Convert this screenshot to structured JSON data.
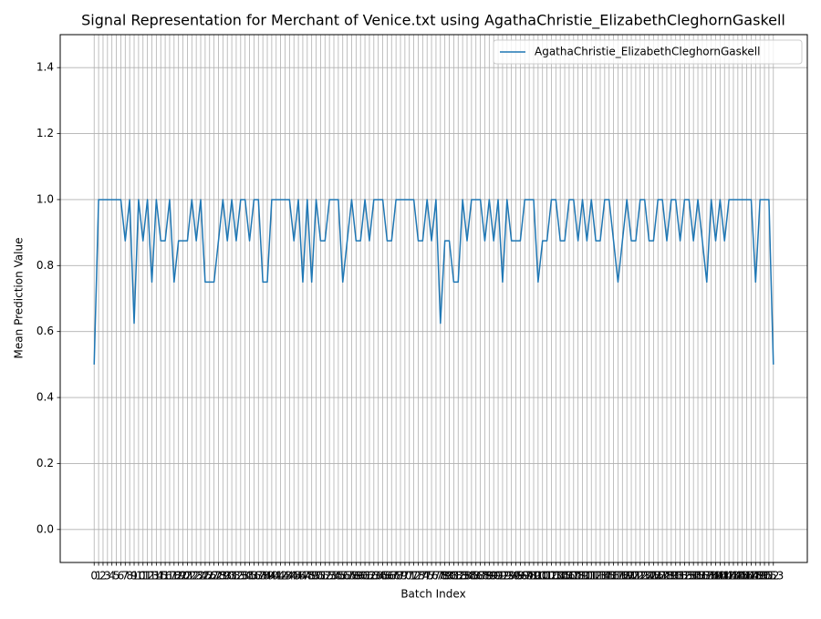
{
  "chart_data": {
    "type": "line",
    "title": "Signal Representation for Merchant of Venice.txt using AgathaChristie_ElizabethCleghornGaskell",
    "x_label": "Batch Index",
    "y_label": "Mean Prediction Value",
    "x": [
      0,
      1,
      2,
      3,
      4,
      5,
      6,
      7,
      8,
      9,
      10,
      11,
      12,
      13,
      14,
      15,
      16,
      17,
      18,
      19,
      20,
      21,
      22,
      23,
      24,
      25,
      26,
      27,
      28,
      29,
      30,
      31,
      32,
      33,
      34,
      35,
      36,
      37,
      38,
      39,
      40,
      41,
      42,
      43,
      44,
      45,
      46,
      47,
      48,
      49,
      50,
      51,
      52,
      53,
      54,
      55,
      56,
      57,
      58,
      59,
      60,
      61,
      62,
      63,
      64,
      65,
      66,
      67,
      68,
      69,
      70,
      71,
      72,
      73,
      74,
      75,
      76,
      77,
      78,
      79,
      80,
      81,
      82,
      83,
      84,
      85,
      86,
      87,
      88,
      89,
      90,
      91,
      92,
      93,
      94,
      95,
      96,
      97,
      98,
      99,
      100,
      101,
      102,
      103,
      104,
      105,
      106,
      107,
      108,
      109,
      110,
      111,
      112,
      113,
      114,
      115,
      116,
      117,
      118,
      119,
      120,
      121,
      122,
      123,
      124,
      125,
      126,
      127,
      128,
      129,
      130,
      131,
      132,
      133,
      134,
      135,
      136,
      137,
      138,
      139,
      140,
      141,
      142,
      143,
      144,
      145,
      146,
      147,
      148,
      149,
      150,
      151,
      152,
      153
    ],
    "series": [
      {
        "name": "AgathaChristie_ElizabethCleghornGaskell",
        "color": "#1f77b4",
        "values": [
          0.5,
          1,
          1,
          1,
          1,
          1,
          1,
          0.875,
          1,
          0.625,
          1,
          0.875,
          1,
          0.75,
          1,
          0.875,
          0.875,
          1,
          0.75,
          0.875,
          0.875,
          0.875,
          1,
          0.875,
          1,
          0.75,
          0.75,
          0.75,
          0.875,
          1,
          0.875,
          1,
          0.875,
          1,
          1,
          0.875,
          1,
          1,
          0.75,
          0.75,
          1,
          1,
          1,
          1,
          1,
          0.875,
          1,
          0.75,
          1,
          0.75,
          1,
          0.875,
          0.875,
          1,
          1,
          1,
          0.75,
          0.875,
          1,
          0.875,
          0.875,
          1,
          0.875,
          1,
          1,
          1,
          0.875,
          0.875,
          1,
          1,
          1,
          1,
          1,
          0.875,
          0.875,
          1,
          0.875,
          1,
          0.625,
          0.875,
          0.875,
          0.75,
          0.75,
          1,
          0.875,
          1,
          1,
          1,
          0.875,
          1,
          0.875,
          1,
          0.75,
          1,
          0.875,
          0.875,
          0.875,
          1,
          1,
          1,
          0.75,
          0.875,
          0.875,
          1,
          1,
          0.875,
          0.875,
          1,
          1,
          0.875,
          1,
          0.875,
          1,
          0.875,
          0.875,
          1,
          1,
          0.875,
          0.75,
          0.875,
          1,
          0.875,
          0.875,
          1,
          1,
          0.875,
          0.875,
          1,
          1,
          0.875,
          1,
          1,
          0.875,
          1,
          1,
          0.875,
          1,
          0.875,
          0.75,
          1,
          0.875,
          1,
          0.875,
          1,
          1,
          1,
          1,
          1,
          1,
          0.75,
          1,
          1,
          1,
          0.5
        ]
      }
    ],
    "xlim": [
      -7.65,
      160.65
    ],
    "xticks": [
      0,
      1,
      2,
      3,
      4,
      5,
      6,
      7,
      8,
      9,
      10,
      11,
      12,
      13,
      14,
      15,
      16,
      17,
      18,
      19,
      20,
      21,
      22,
      23,
      24,
      25,
      26,
      27,
      28,
      29,
      30,
      31,
      32,
      33,
      34,
      35,
      36,
      37,
      38,
      39,
      40,
      41,
      42,
      43,
      44,
      45,
      46,
      47,
      48,
      49,
      50,
      51,
      52,
      53,
      54,
      55,
      56,
      57,
      58,
      59,
      60,
      61,
      62,
      63,
      64,
      65,
      66,
      67,
      68,
      69,
      70,
      71,
      72,
      73,
      74,
      75,
      76,
      77,
      78,
      79,
      80,
      81,
      82,
      83,
      84,
      85,
      86,
      87,
      88,
      89,
      90,
      91,
      92,
      93,
      94,
      95,
      96,
      97,
      98,
      99,
      100,
      101,
      102,
      103,
      104,
      105,
      106,
      107,
      108,
      109,
      110,
      111,
      112,
      113,
      114,
      115,
      116,
      117,
      118,
      119,
      120,
      121,
      122,
      123,
      124,
      125,
      126,
      127,
      128,
      129,
      130,
      131,
      132,
      133,
      134,
      135,
      136,
      137,
      138,
      139,
      140,
      141,
      142,
      143,
      144,
      145,
      146,
      147,
      148,
      149,
      150,
      151,
      152,
      153
    ],
    "ylim": [
      -0.1,
      1.5
    ],
    "yticks": [
      {
        "value": 0,
        "label": "0.0"
      },
      0.2,
      0.4,
      0.6,
      0.8,
      {
        "value": 1,
        "label": "1.0"
      },
      1.2,
      1.4
    ],
    "grid": true,
    "legend": "upper right"
  }
}
